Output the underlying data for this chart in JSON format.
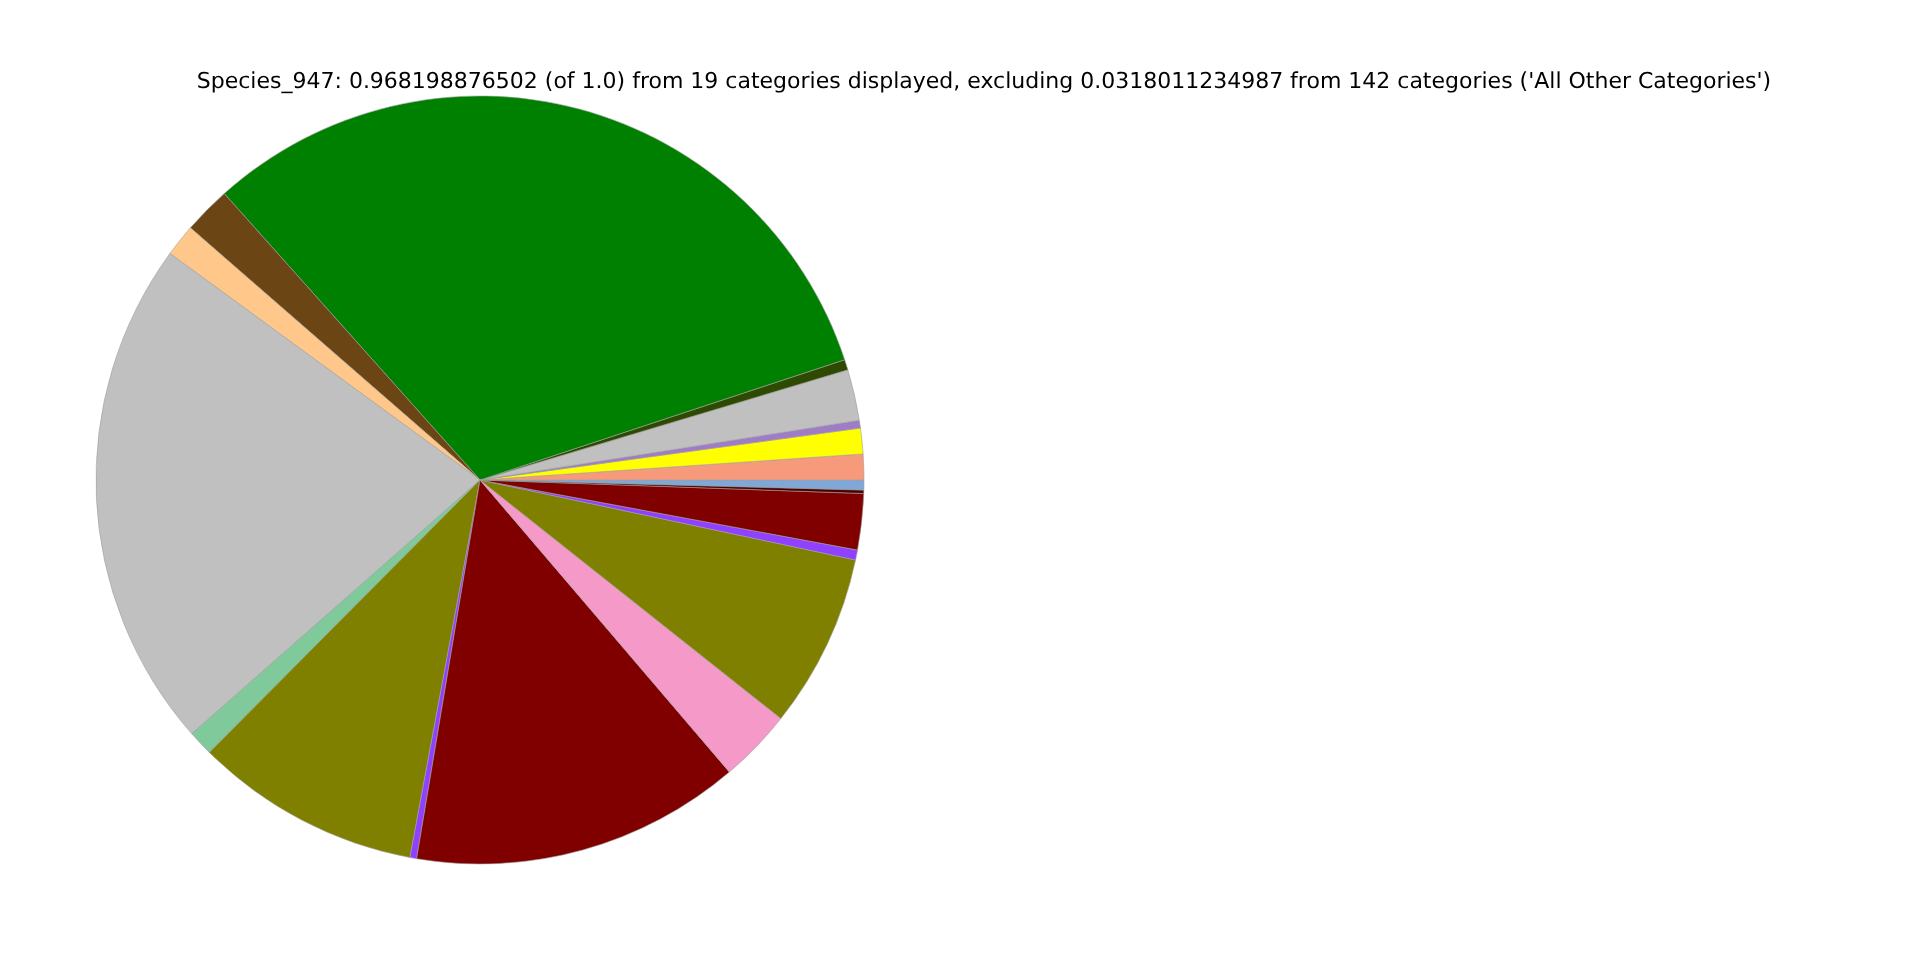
{
  "chart_data": {
    "type": "pie",
    "title": "Species_947: 0.968198876502 (of 1.0) from 19 categories displayed, excluding 0.0318011234987 from 142 categories ('All Other Categories')",
    "categories": [
      null,
      null,
      null,
      null,
      null,
      null,
      null,
      null,
      null,
      null,
      null,
      null,
      null,
      null,
      null,
      null,
      null,
      null,
      null
    ],
    "values": [
      0.42,
      1.08,
      1.08,
      0.33,
      2.14,
      0.44,
      31.53,
      2.0,
      1.36,
      21.53,
      1.06,
      9.53,
      0.28,
      13.89,
      3.08,
      7.33,
      0.42,
      2.36,
      0.14
    ],
    "colors": [
      "#7fa8d8",
      "#f79a7b",
      "#ffff00",
      "#a07cc8",
      "#c0c0c0",
      "#2e4a00",
      "#008000",
      "#6b4513",
      "#ffc88a",
      "#c0c0c0",
      "#7fc99a",
      "#808000",
      "#9040ff",
      "#800000",
      "#f59ac8",
      "#808000",
      "#9040ff",
      "#800000",
      "#4b0000"
    ],
    "legend": false
  }
}
